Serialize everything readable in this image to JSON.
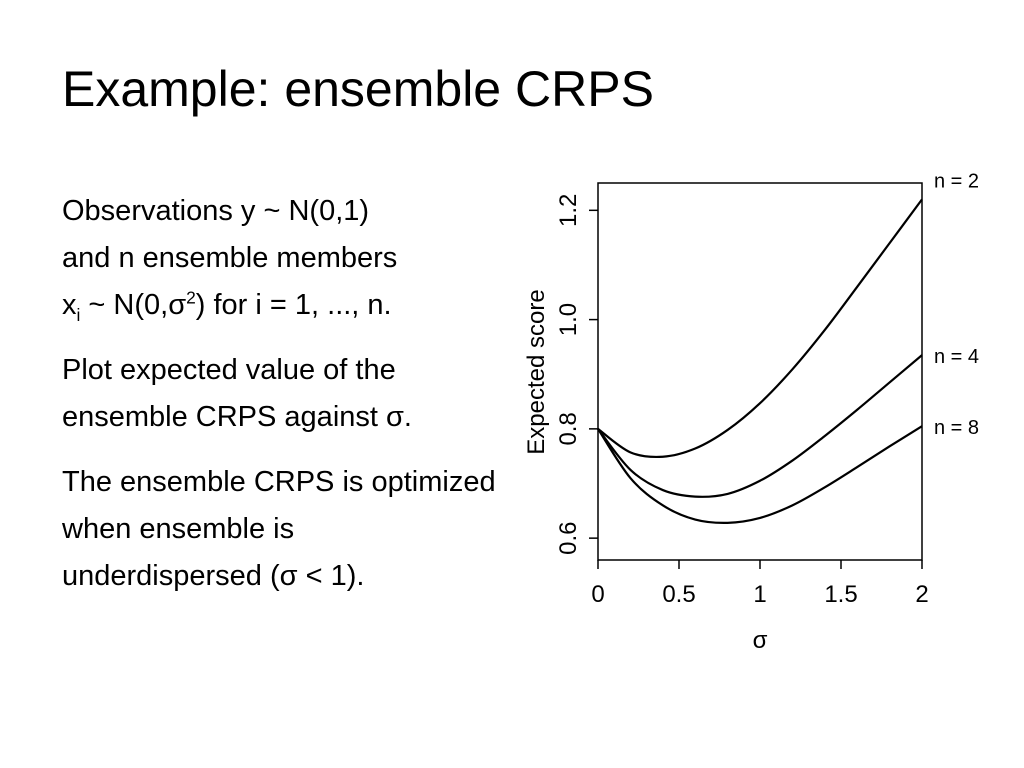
{
  "slide": {
    "title": "Example: ensemble CRPS",
    "para1": {
      "line1": "Observations y ~ N(0,1)",
      "line2": "and n ensemble members",
      "line3_x": "x",
      "line3_sub": "i",
      "line3_mid": " ~ N(0,σ",
      "line3_sup": "2",
      "line3_end": ") for i = 1, ..., n."
    },
    "para2": "Plot expected value of the ensemble CRPS against σ.",
    "para3": "The ensemble CRPS is optimized when ensemble is underdispersed (σ < 1)."
  },
  "chart_data": {
    "type": "line",
    "xlabel": "σ",
    "ylabel": "Expected score",
    "xlim": [
      0,
      2
    ],
    "ylim": [
      0.56,
      1.25
    ],
    "xticks": [
      0,
      0.5,
      1,
      1.5,
      2
    ],
    "xtick_labels": [
      "0",
      "0.5",
      "1",
      "1.5",
      "2"
    ],
    "yticks": [
      0.6,
      0.8,
      1.0,
      1.2
    ],
    "ytick_labels": [
      "0.6",
      "0.8",
      "1.0",
      "1.2"
    ],
    "grid": false,
    "legend": "none; series labelled at right end of each curve",
    "series": [
      {
        "name": "n = 2",
        "x": [
          0,
          0.2,
          0.4,
          0.6,
          0.8,
          1.0,
          1.2,
          1.4,
          1.6,
          1.8,
          2.0
        ],
        "y": [
          0.8,
          0.757,
          0.749,
          0.764,
          0.798,
          0.847,
          0.909,
          0.981,
          1.06,
          1.14,
          1.22
        ]
      },
      {
        "name": "n = 4",
        "x": [
          0,
          0.2,
          0.4,
          0.6,
          0.8,
          1.0,
          1.2,
          1.4,
          1.6,
          1.8,
          2.0
        ],
        "y": [
          0.8,
          0.725,
          0.688,
          0.676,
          0.681,
          0.705,
          0.742,
          0.787,
          0.835,
          0.885,
          0.935
        ]
      },
      {
        "name": "n = 8",
        "x": [
          0,
          0.2,
          0.4,
          0.6,
          0.8,
          1.0,
          1.2,
          1.4,
          1.6,
          1.8,
          2.0
        ],
        "y": [
          0.8,
          0.71,
          0.66,
          0.634,
          0.628,
          0.637,
          0.66,
          0.693,
          0.73,
          0.768,
          0.805
        ]
      }
    ]
  }
}
